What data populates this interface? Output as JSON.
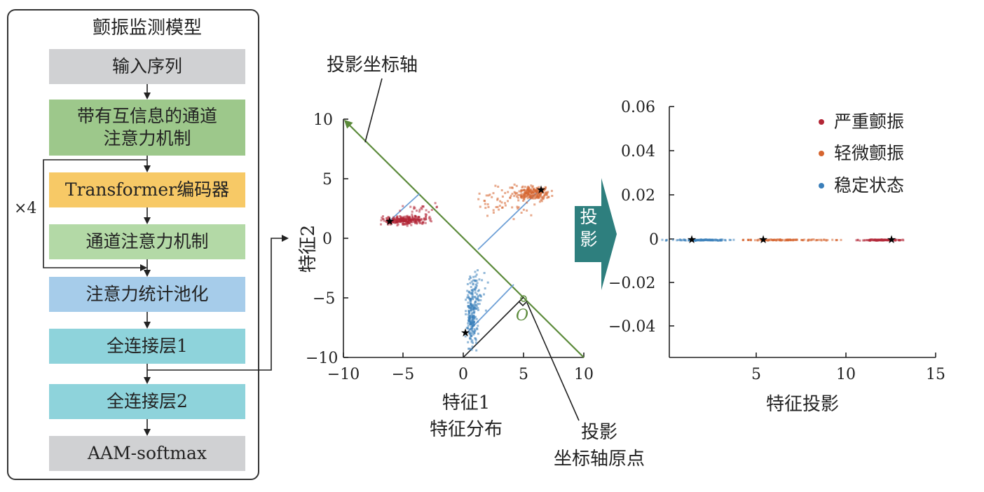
{
  "model": {
    "title": "颤振监测模型",
    "blocks": [
      {
        "label": "输入序列",
        "color": "#d0d1d3"
      },
      {
        "label": "带有互信息的通道\n注意力机制",
        "color": "#9dc88b"
      },
      {
        "label": "Transformer编码器",
        "color": "#f7c966"
      },
      {
        "label": "通道注意力机制",
        "color": "#b3d9a6"
      },
      {
        "label": "注意力统计池化",
        "color": "#a6ccea"
      },
      {
        "label": "全连接层1",
        "color": "#8ed3db"
      },
      {
        "label": "全连接层2",
        "color": "#8ed3db"
      },
      {
        "label": "AAM-softmax",
        "color": "#d0d1d3"
      }
    ],
    "repeat_label": "×4"
  },
  "feature_plot": {
    "ylabel": "特征2",
    "xlabel": "特征1",
    "caption": "特征分布",
    "x_ticks": [
      "−10",
      "−5",
      "0",
      "5",
      "10"
    ],
    "y_ticks": [
      "10",
      "5",
      "0",
      "−5",
      "−10"
    ],
    "axis_annotation": "投影坐标轴",
    "origin_annotation": "投影\n坐标轴原点",
    "origin_symbol": "O"
  },
  "projection_arrow_label": "投\n影",
  "projection_plot": {
    "xlabel": "特征投影",
    "x_ticks": [
      "5",
      "10",
      "15"
    ],
    "y_ticks": [
      "0.06",
      "0.04",
      "0.02",
      "0",
      "−0.02",
      "−0.04"
    ],
    "legend": [
      {
        "label": "严重颤振",
        "color": "#b32636"
      },
      {
        "label": "轻微颤振",
        "color": "#d6652f"
      },
      {
        "label": "稳定状态",
        "color": "#3b7fba"
      }
    ]
  },
  "colors": {
    "axis_green": "#5b8a3a",
    "arrow_teal": "#2e7f7e",
    "projection_line": "#6d9fd6"
  }
}
